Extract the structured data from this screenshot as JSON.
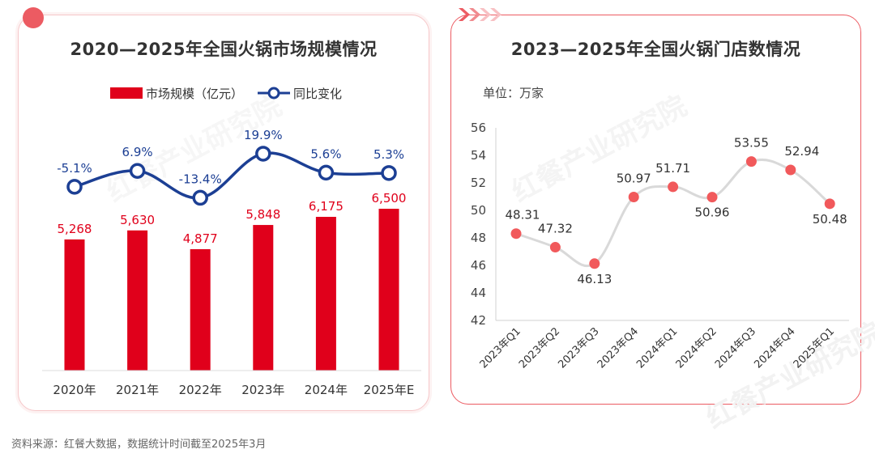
{
  "colors": {
    "bar": "#e0001b",
    "line": "#1c3f94",
    "point": "#f1595b",
    "curve": "#d9d9d9",
    "accent": "#ec5b62"
  },
  "watermark": "红餐产业研究院",
  "source": "资料来源：红餐大数据，数据统计时间截至2025年3月",
  "chart_data": [
    {
      "type": "bar",
      "title": "2020—2025年全国火锅市场规模情况",
      "categories": [
        "2020年",
        "2021年",
        "2022年",
        "2023年",
        "2024年",
        "2025年E"
      ],
      "series": [
        {
          "name": "市场规模（亿元）",
          "type": "bar",
          "values": [
            5268,
            5630,
            4877,
            5848,
            6175,
            6500
          ],
          "labels": [
            "5,268",
            "5,630",
            "4,877",
            "5,848",
            "6,175",
            "6,500"
          ]
        },
        {
          "name": "同比变化",
          "type": "line",
          "values": [
            -5.1,
            6.9,
            -13.4,
            19.9,
            5.6,
            5.3
          ],
          "labels": [
            "-5.1%",
            "6.9%",
            "-13.4%",
            "19.9%",
            "5.6%",
            "5.3%"
          ]
        }
      ],
      "xlabel": "",
      "ylabel": ""
    },
    {
      "type": "scatter",
      "title": "2023—2025年全国火锅门店数情况",
      "unit": "单位：万家",
      "categories": [
        "2023年Q1",
        "2023年Q2",
        "2023年Q3",
        "2023年Q4",
        "2024年Q1",
        "2024年Q2",
        "2024年Q3",
        "2024年Q4",
        "2025年Q1"
      ],
      "values": [
        48.31,
        47.32,
        46.13,
        50.97,
        51.71,
        50.96,
        53.55,
        52.94,
        50.48
      ],
      "labels": [
        "48.31",
        "47.32",
        "46.13",
        "50.97",
        "51.71",
        "50.96",
        "53.55",
        "52.94",
        "50.48"
      ],
      "ylim": [
        42,
        56
      ],
      "yticks": [
        "42",
        "44",
        "46",
        "48",
        "50",
        "52",
        "54",
        "56"
      ],
      "xlabel": "",
      "ylabel": ""
    }
  ]
}
